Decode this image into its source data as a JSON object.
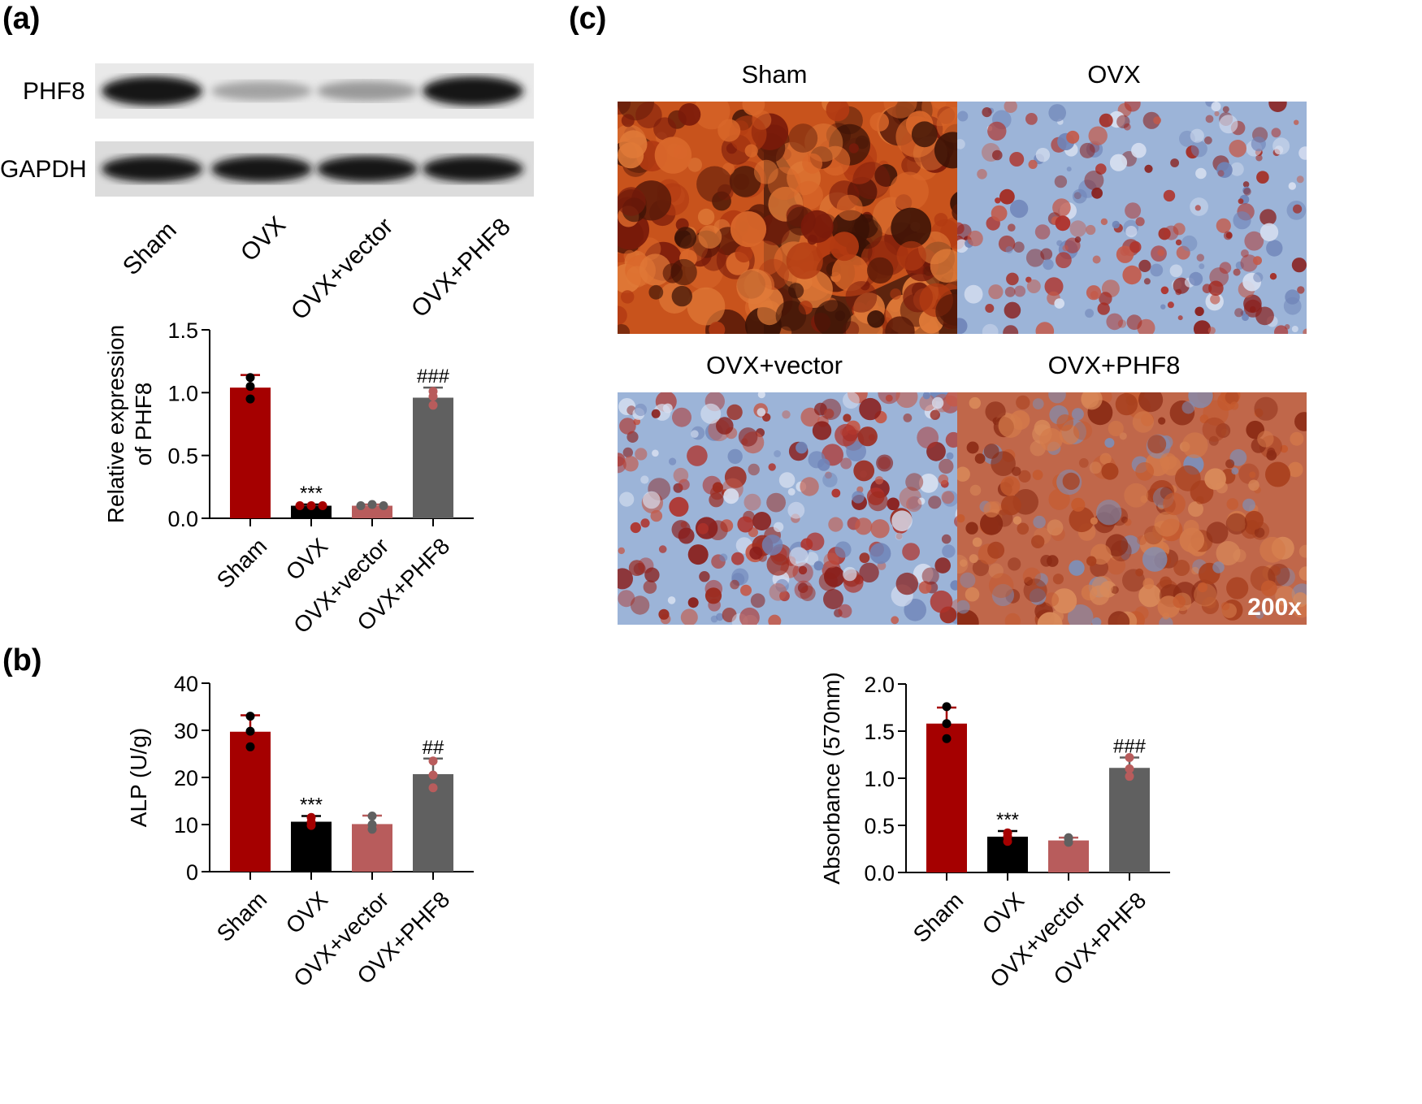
{
  "panels": {
    "a": "(a)",
    "b": "(b)",
    "c": "(c)"
  },
  "blot": {
    "rows": [
      "PHF8",
      "GAPDH"
    ],
    "lanes": [
      "Sham",
      "OVX",
      "OVX+vector",
      "OVX+PHF8"
    ],
    "phf8_intensity": [
      1.0,
      0.25,
      0.3,
      1.0
    ],
    "gapdh_intensity": [
      1.0,
      1.0,
      1.0,
      1.0
    ]
  },
  "micrographs": {
    "titles": [
      "Sham",
      "OVX",
      "OVX+vector",
      "OVX+PHF8"
    ],
    "magnification": "200x"
  },
  "colors": {
    "sham": "#a50000",
    "ovx": "#000000",
    "ovx_vector": "#b85c5c",
    "ovx_phf8": "#606060"
  },
  "chart_data": [
    {
      "id": "phf8",
      "type": "bar",
      "categories": [
        "Sham",
        "OVX",
        "OVX+vector",
        "OVX+PHF8"
      ],
      "values": [
        1.04,
        0.1,
        0.1,
        0.96
      ],
      "errors": [
        0.1,
        0.01,
        0.01,
        0.08
      ],
      "points": [
        [
          1.12,
          1.05,
          0.95
        ],
        [
          0.1,
          0.1,
          0.1
        ],
        [
          0.1,
          0.11,
          0.1
        ],
        [
          1.01,
          0.97,
          0.9
        ]
      ],
      "annotations": [
        "",
        "***",
        "",
        "###"
      ],
      "ylabel": [
        "Relative expression",
        "of PHF8"
      ],
      "ylim": [
        0,
        1.5
      ],
      "yticks": [
        "0.0",
        "0.5",
        "1.0",
        "1.5"
      ]
    },
    {
      "id": "alp",
      "type": "bar",
      "categories": [
        "Sham",
        "OVX",
        "OVX+vector",
        "OVX+PHF8"
      ],
      "values": [
        29.7,
        10.6,
        10.1,
        20.7
      ],
      "errors": [
        3.5,
        1.2,
        1.8,
        3.3
      ],
      "points": [
        [
          33.0,
          29.8,
          26.5
        ],
        [
          11.5,
          10.5,
          9.8
        ],
        [
          11.8,
          10.0,
          9.0
        ],
        [
          23.5,
          20.5,
          17.8
        ]
      ],
      "annotations": [
        "",
        "***",
        "",
        "##"
      ],
      "ylabel": [
        "ALP (U/g)"
      ],
      "ylim": [
        0,
        40
      ],
      "yticks": [
        "0",
        "10",
        "20",
        "30",
        "40"
      ]
    },
    {
      "id": "absorbance",
      "type": "bar",
      "categories": [
        "Sham",
        "OVX",
        "OVX+vector",
        "OVX+PHF8"
      ],
      "values": [
        1.58,
        0.38,
        0.34,
        1.11
      ],
      "errors": [
        0.17,
        0.06,
        0.03,
        0.11
      ],
      "points": [
        [
          1.76,
          1.58,
          1.42
        ],
        [
          0.42,
          0.38,
          0.33
        ],
        [
          0.37,
          0.36,
          0.32
        ],
        [
          1.22,
          1.1,
          1.02
        ]
      ],
      "annotations": [
        "",
        "***",
        "",
        "###"
      ],
      "ylabel": [
        "Absorbance (570nm)"
      ],
      "ylim": [
        0,
        2.0
      ],
      "yticks": [
        "0.0",
        "0.5",
        "1.0",
        "1.5",
        "2.0"
      ]
    }
  ]
}
